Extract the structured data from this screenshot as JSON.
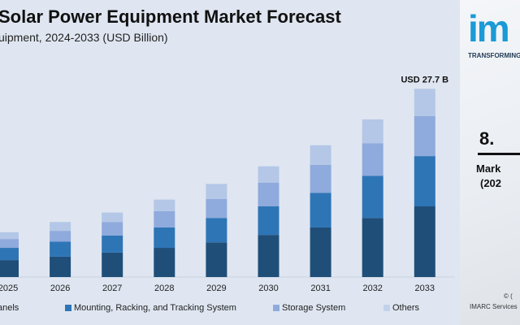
{
  "title": "Solar Power Equipment Market Forecast",
  "subtitle": "uipment, 2024-2033 (USD Billion)",
  "chart_data": {
    "type": "bar",
    "stacked": true,
    "categories": [
      "2025",
      "2026",
      "2027",
      "2028",
      "2029",
      "2030",
      "2031",
      "2032",
      "2033"
    ],
    "series": [
      {
        "name": "anels",
        "color": "#1f4e79",
        "values": [
          2.5,
          3.0,
          3.6,
          4.3,
          5.1,
          6.2,
          7.3,
          8.7,
          10.4
        ]
      },
      {
        "name": "Mounting, Racking, and Tracking System",
        "color": "#2e75b6",
        "values": [
          1.8,
          2.2,
          2.5,
          3.0,
          3.6,
          4.2,
          5.1,
          6.2,
          7.4
        ]
      },
      {
        "name": "Storage System",
        "color": "#8faadc",
        "values": [
          1.3,
          1.6,
          2.0,
          2.4,
          2.8,
          3.5,
          4.1,
          4.8,
          5.9
        ]
      },
      {
        "name": "Others",
        "color": "#b4c7e7",
        "values": [
          1.0,
          1.3,
          1.4,
          1.7,
          2.2,
          2.4,
          2.9,
          3.5,
          4.0
        ]
      }
    ],
    "annotations": [
      {
        "category": "2033",
        "text": "USD 27.7 B"
      }
    ],
    "ylim": [
      0,
      28
    ],
    "grid": false,
    "legend": "bottom"
  },
  "panel": {
    "logo": "im",
    "tagline": "TRANSFORMING",
    "cagr_value": "8.",
    "cagr_label_1": "Mark",
    "cagr_label_2": "(202",
    "copyright_1": "© (",
    "copyright_2": "IMARC Services"
  }
}
